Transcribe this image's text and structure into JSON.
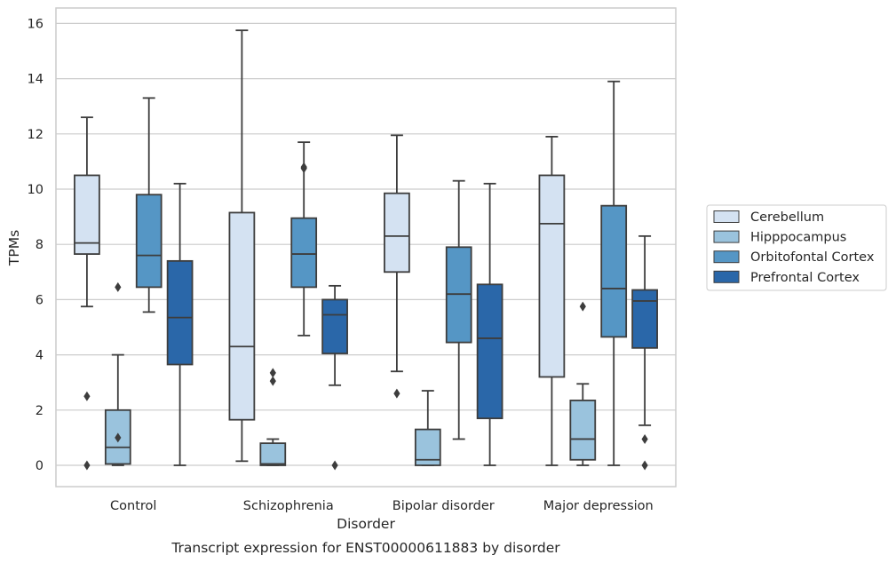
{
  "chart_data": {
    "type": "box",
    "title": "",
    "caption": "Transcript expression for ENST00000611883 by disorder",
    "xlabel": "Disorder",
    "ylabel": "TPMs",
    "ylim": [
      -0.75,
      16.6
    ],
    "yticks": [
      0,
      2,
      4,
      6,
      8,
      10,
      12,
      14,
      16
    ],
    "grid": "horizontal",
    "legend_position": "center-right",
    "categories": [
      "Control",
      "Schizophrenia",
      "Bipolar disorder",
      "Major depression"
    ],
    "series": [
      {
        "name": "Cerebellum",
        "color": "#d4e2f2",
        "boxes": [
          {
            "low": 5.75,
            "q1": 7.65,
            "median": 8.05,
            "q3": 10.5,
            "high": 12.6,
            "outliers": [
              2.5,
              0.0
            ]
          },
          {
            "low": 0.15,
            "q1": 1.65,
            "median": 4.3,
            "q3": 9.15,
            "high": 15.75,
            "outliers": []
          },
          {
            "low": 3.4,
            "q1": 7.0,
            "median": 8.3,
            "q3": 9.85,
            "high": 11.95,
            "outliers": [
              2.6
            ]
          },
          {
            "low": 0.0,
            "q1": 3.2,
            "median": 8.75,
            "q3": 10.5,
            "high": 11.9,
            "outliers": []
          }
        ]
      },
      {
        "name": "Hipppocampus",
        "color": "#9ac3dd",
        "boxes": [
          {
            "low": 0.0,
            "q1": 0.05,
            "median": 0.65,
            "q3": 2.0,
            "high": 4.0,
            "outliers": [
              6.45,
              1.0
            ]
          },
          {
            "low": 0.0,
            "q1": 0.0,
            "median": 0.05,
            "q3": 0.8,
            "high": 0.95,
            "outliers": [
              3.35,
              3.05
            ]
          },
          {
            "low": 0.0,
            "q1": 0.0,
            "median": 0.2,
            "q3": 1.3,
            "high": 2.7,
            "outliers": []
          },
          {
            "low": 0.0,
            "q1": 0.2,
            "median": 0.95,
            "q3": 2.35,
            "high": 2.95,
            "outliers": [
              5.75
            ]
          }
        ]
      },
      {
        "name": "Orbitofontal Cortex",
        "color": "#5596c5",
        "boxes": [
          {
            "low": 5.55,
            "q1": 6.45,
            "median": 7.6,
            "q3": 9.8,
            "high": 13.3,
            "outliers": []
          },
          {
            "low": 4.7,
            "q1": 6.45,
            "median": 7.65,
            "q3": 8.95,
            "high": 11.7,
            "outliers": [
              10.75,
              10.8
            ]
          },
          {
            "low": 0.95,
            "q1": 4.45,
            "median": 6.2,
            "q3": 7.9,
            "high": 10.3,
            "outliers": []
          },
          {
            "low": 0.0,
            "q1": 4.65,
            "median": 6.4,
            "q3": 9.4,
            "high": 13.9,
            "outliers": []
          }
        ]
      },
      {
        "name": "Prefrontal Cortex",
        "color": "#2a67a9",
        "boxes": [
          {
            "low": 0.0,
            "q1": 3.65,
            "median": 5.35,
            "q3": 7.4,
            "high": 10.2,
            "outliers": []
          },
          {
            "low": 2.9,
            "q1": 4.05,
            "median": 5.45,
            "q3": 6.0,
            "high": 6.5,
            "outliers": [
              0.0
            ]
          },
          {
            "low": 0.0,
            "q1": 1.7,
            "median": 4.6,
            "q3": 6.55,
            "high": 10.2,
            "outliers": []
          },
          {
            "low": 1.45,
            "q1": 4.25,
            "median": 5.95,
            "q3": 6.35,
            "high": 8.3,
            "outliers": [
              0.95,
              0.0
            ]
          }
        ]
      }
    ]
  }
}
